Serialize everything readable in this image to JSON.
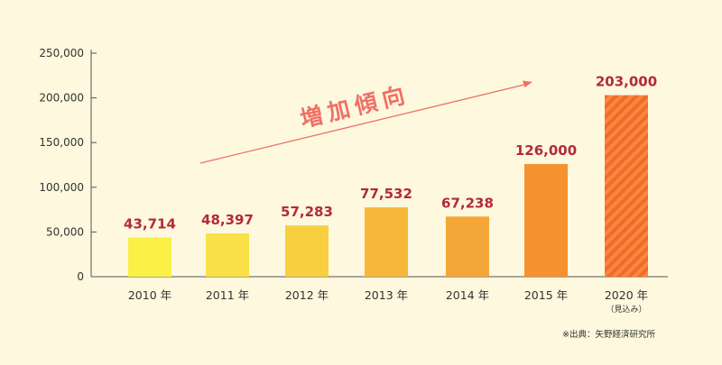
{
  "chart_data": {
    "type": "bar",
    "categories": [
      "2010 年",
      "2011 年",
      "2012 年",
      "2013 年",
      "2014 年",
      "2015 年",
      "2020 年"
    ],
    "category_notes": [
      "",
      "",
      "",
      "",
      "",
      "",
      "（見込み）"
    ],
    "values": [
      43714,
      48397,
      57283,
      77532,
      67238,
      126000,
      203000
    ],
    "value_labels": [
      "43,714",
      "48,397",
      "57,283",
      "77,532",
      "67,238",
      "126,000",
      "203,000"
    ],
    "ylim": [
      0,
      250000
    ],
    "yticks": [
      0,
      50000,
      100000,
      150000,
      200000,
      250000
    ],
    "ytick_labels": [
      "0",
      "50,000",
      "100,000",
      "150,000",
      "200,000",
      "250,000"
    ],
    "bar_colors": [
      "#fbf046",
      "#fae048",
      "#f8cf3e",
      "#f7b83a",
      "#f5a638",
      "#f5912e",
      "#f36a2c"
    ],
    "hatched_category_index": 6,
    "annotation": "増加傾向",
    "annotation_color": "#f07066",
    "value_label_color": "#b22a3a",
    "grid": false
  },
  "source": "※出典：矢野経済研究所"
}
